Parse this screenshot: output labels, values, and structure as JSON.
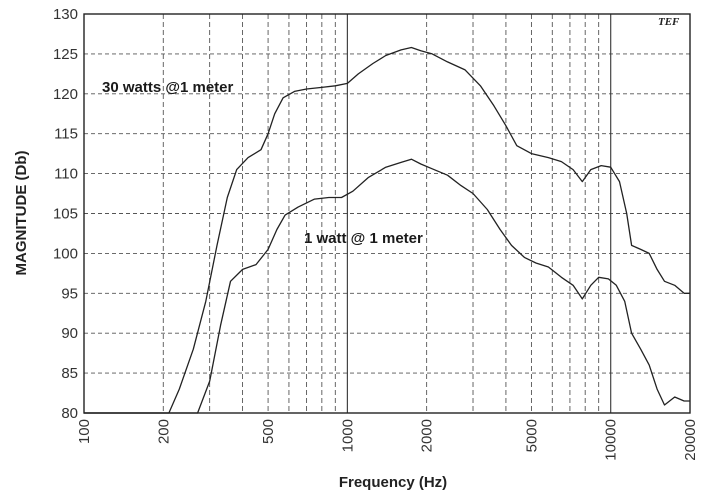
{
  "chart_data": {
    "type": "line",
    "xscale": "log",
    "xlim": [
      100,
      20000
    ],
    "ylim": [
      80,
      130
    ],
    "xlabel": "Frequency (Hz)",
    "ylabel": "MAGNITUDE (Db)",
    "y_ticks": [
      80,
      85,
      90,
      95,
      100,
      105,
      110,
      115,
      120,
      125,
      130
    ],
    "x_ticks": [
      100,
      200,
      500,
      1000,
      2000,
      5000,
      10000,
      20000
    ],
    "logo": "TEF",
    "grid": true,
    "series": [
      {
        "name": "30 watts @1 meter",
        "color": "#222222",
        "points": [
          [
            100,
            80
          ],
          [
            150,
            80
          ],
          [
            210,
            80
          ],
          [
            230,
            83
          ],
          [
            260,
            88
          ],
          [
            290,
            94
          ],
          [
            320,
            101
          ],
          [
            350,
            107
          ],
          [
            380,
            110.5
          ],
          [
            420,
            112
          ],
          [
            470,
            113
          ],
          [
            500,
            115
          ],
          [
            530,
            117.5
          ],
          [
            570,
            119.5
          ],
          [
            630,
            120.3
          ],
          [
            700,
            120.6
          ],
          [
            800,
            120.8
          ],
          [
            900,
            121
          ],
          [
            1000,
            121.3
          ],
          [
            1100,
            122.5
          ],
          [
            1250,
            123.8
          ],
          [
            1400,
            124.8
          ],
          [
            1600,
            125.5
          ],
          [
            1750,
            125.8
          ],
          [
            1900,
            125.4
          ],
          [
            2100,
            125
          ],
          [
            2400,
            124
          ],
          [
            2800,
            123
          ],
          [
            3200,
            121
          ],
          [
            3600,
            118.5
          ],
          [
            4000,
            116
          ],
          [
            4400,
            113.5
          ],
          [
            5000,
            112.5
          ],
          [
            5800,
            112
          ],
          [
            6500,
            111.5
          ],
          [
            7200,
            110.5
          ],
          [
            7800,
            109
          ],
          [
            8400,
            110.5
          ],
          [
            9200,
            111
          ],
          [
            10000,
            110.8
          ],
          [
            10800,
            109
          ],
          [
            11500,
            105
          ],
          [
            12000,
            101
          ],
          [
            13000,
            100.5
          ],
          [
            14000,
            100
          ],
          [
            15000,
            98
          ],
          [
            16000,
            96.5
          ],
          [
            17500,
            96
          ],
          [
            19000,
            95
          ],
          [
            20000,
            95
          ]
        ]
      },
      {
        "name": "1 watt @ 1 meter",
        "color": "#222222",
        "points": [
          [
            100,
            80
          ],
          [
            150,
            80
          ],
          [
            200,
            80
          ],
          [
            270,
            80
          ],
          [
            300,
            84
          ],
          [
            330,
            91
          ],
          [
            360,
            96.5
          ],
          [
            400,
            98
          ],
          [
            450,
            98.6
          ],
          [
            500,
            100.5
          ],
          [
            540,
            103
          ],
          [
            580,
            104.8
          ],
          [
            650,
            105.8
          ],
          [
            750,
            106.8
          ],
          [
            850,
            107
          ],
          [
            950,
            107
          ],
          [
            1050,
            107.8
          ],
          [
            1200,
            109.5
          ],
          [
            1400,
            110.8
          ],
          [
            1600,
            111.4
          ],
          [
            1750,
            111.8
          ],
          [
            1900,
            111.2
          ],
          [
            2100,
            110.6
          ],
          [
            2400,
            109.8
          ],
          [
            2700,
            108.5
          ],
          [
            3000,
            107.5
          ],
          [
            3400,
            105.5
          ],
          [
            3800,
            103
          ],
          [
            4200,
            101
          ],
          [
            4700,
            99.5
          ],
          [
            5200,
            98.8
          ],
          [
            5800,
            98.3
          ],
          [
            6500,
            97
          ],
          [
            7200,
            96
          ],
          [
            7800,
            94.3
          ],
          [
            8400,
            96
          ],
          [
            9000,
            97
          ],
          [
            9800,
            96.8
          ],
          [
            10500,
            96
          ],
          [
            11300,
            94
          ],
          [
            12000,
            90
          ],
          [
            13000,
            88
          ],
          [
            14000,
            86
          ],
          [
            15000,
            83
          ],
          [
            16000,
            81
          ],
          [
            17500,
            82
          ],
          [
            19000,
            81.5
          ],
          [
            20000,
            81.5
          ]
        ]
      }
    ]
  }
}
